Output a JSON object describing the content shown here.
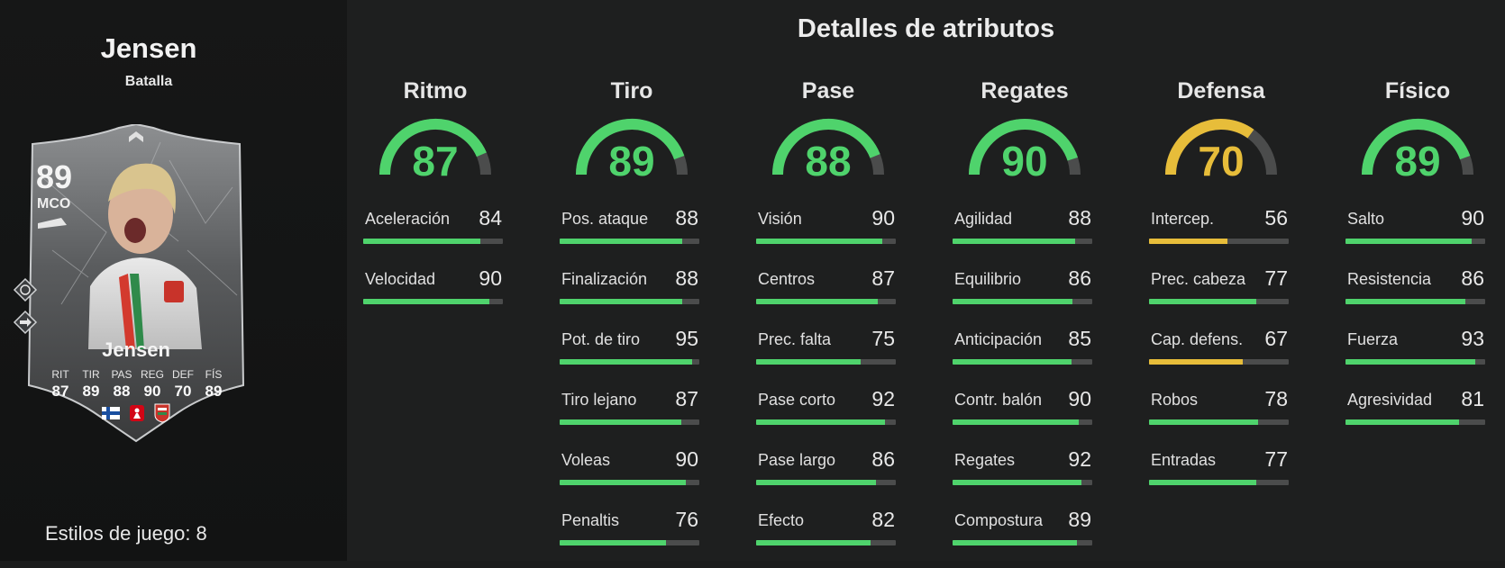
{
  "colors": {
    "green": "#4fd36c",
    "yellow": "#e7bd3a",
    "track": "#4b4c4c"
  },
  "player": {
    "name": "Jensen",
    "version": "Batalla",
    "playstyles_label": "Estilos de juego: 8"
  },
  "card": {
    "rating": "89",
    "position": "MCO",
    "name": "Jensen",
    "stats": [
      {
        "label": "RIT",
        "value": "87"
      },
      {
        "label": "TIR",
        "value": "89"
      },
      {
        "label": "PAS",
        "value": "88"
      },
      {
        "label": "REG",
        "value": "90"
      },
      {
        "label": "DEF",
        "value": "70"
      },
      {
        "label": "FÍS",
        "value": "89"
      }
    ],
    "icons": [
      "playstyle-plus-icon",
      "playstyle-arrow-icon",
      "finland-flag-icon",
      "bundesliga-logo",
      "augsburg-crest"
    ]
  },
  "title": "Detalles de atributos",
  "categories": [
    {
      "name": "Ritmo",
      "value": 87,
      "color": "#4fd36c",
      "attributes": [
        {
          "name": "Aceleración",
          "value": 84
        },
        {
          "name": "Velocidad",
          "value": 90
        }
      ]
    },
    {
      "name": "Tiro",
      "value": 89,
      "color": "#4fd36c",
      "attributes": [
        {
          "name": "Pos. ataque",
          "value": 88
        },
        {
          "name": "Finalización",
          "value": 88
        },
        {
          "name": "Pot. de tiro",
          "value": 95
        },
        {
          "name": "Tiro lejano",
          "value": 87
        },
        {
          "name": "Voleas",
          "value": 90
        },
        {
          "name": "Penaltis",
          "value": 76
        }
      ]
    },
    {
      "name": "Pase",
      "value": 88,
      "color": "#4fd36c",
      "attributes": [
        {
          "name": "Visión",
          "value": 90
        },
        {
          "name": "Centros",
          "value": 87
        },
        {
          "name": "Prec. falta",
          "value": 75
        },
        {
          "name": "Pase corto",
          "value": 92
        },
        {
          "name": "Pase largo",
          "value": 86
        },
        {
          "name": "Efecto",
          "value": 82
        }
      ]
    },
    {
      "name": "Regates",
      "value": 90,
      "color": "#4fd36c",
      "attributes": [
        {
          "name": "Agilidad",
          "value": 88
        },
        {
          "name": "Equilibrio",
          "value": 86
        },
        {
          "name": "Anticipación",
          "value": 85
        },
        {
          "name": "Contr. balón",
          "value": 90
        },
        {
          "name": "Regates",
          "value": 92
        },
        {
          "name": "Compostura",
          "value": 89
        }
      ]
    },
    {
      "name": "Defensa",
      "value": 70,
      "color": "#e7bd3a",
      "attributes": [
        {
          "name": "Intercep.",
          "value": 56
        },
        {
          "name": "Prec. cabeza",
          "value": 77
        },
        {
          "name": "Cap. defens.",
          "value": 67
        },
        {
          "name": "Robos",
          "value": 78
        },
        {
          "name": "Entradas",
          "value": 77
        }
      ]
    },
    {
      "name": "Físico",
      "value": 89,
      "color": "#4fd36c",
      "attributes": [
        {
          "name": "Salto",
          "value": 90
        },
        {
          "name": "Resistencia",
          "value": 86
        },
        {
          "name": "Fuerza",
          "value": 93
        },
        {
          "name": "Agresividad",
          "value": 81
        }
      ]
    }
  ]
}
